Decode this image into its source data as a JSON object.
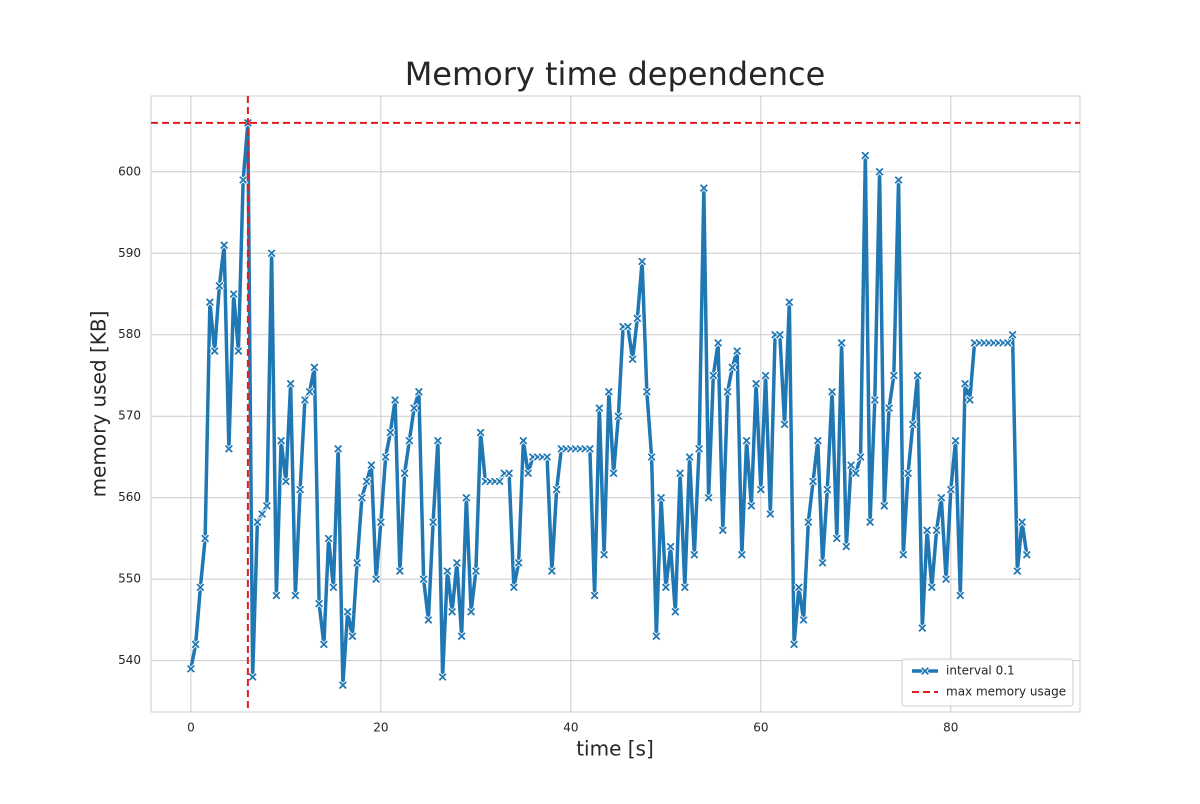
{
  "chart_data": {
    "type": "line",
    "title": "Memory time dependence",
    "x_label": "time [s]",
    "y_label": "memory used [KB]",
    "x": [
      0,
      0.5,
      1,
      1.5,
      2,
      2.5,
      3,
      3.5,
      4,
      4.5,
      5,
      5.5,
      6,
      6.5,
      7,
      7.5,
      8,
      8.5,
      9,
      9.5,
      10,
      10.5,
      11,
      11.5,
      12,
      12.5,
      13,
      13.5,
      14,
      14.5,
      15,
      15.5,
      16,
      16.5,
      17,
      17.5,
      18,
      18.5,
      19,
      19.5,
      20,
      20.5,
      21,
      21.5,
      22,
      22.5,
      23,
      23.5,
      24,
      24.5,
      25,
      25.5,
      26,
      26.5,
      27,
      27.5,
      28,
      28.5,
      29,
      29.5,
      30,
      30.5,
      31,
      31.5,
      32,
      32.5,
      33,
      33.5,
      34,
      34.5,
      35,
      35.5,
      36,
      36.5,
      37,
      37.5,
      38,
      38.5,
      39,
      39.5,
      40,
      40.5,
      41,
      41.5,
      42,
      42.5,
      43,
      43.5,
      44,
      44.5,
      45,
      45.5,
      46,
      46.5,
      47,
      47.5,
      48,
      48.5,
      49,
      49.5,
      50,
      50.5,
      51,
      51.5,
      52,
      52.5,
      53,
      53.5,
      54,
      54.5,
      55,
      55.5,
      56,
      56.5,
      57,
      57.5,
      58,
      58.5,
      59,
      59.5,
      60,
      60.5,
      61,
      61.5,
      62,
      62.5,
      63,
      63.5,
      64,
      64.5,
      65,
      65.5,
      66,
      66.5,
      67,
      67.5,
      68,
      68.5,
      69,
      69.5,
      70,
      70.5,
      71,
      71.5,
      72,
      72.5,
      73,
      73.5,
      74,
      74.5,
      75,
      75.5,
      76,
      76.5,
      77,
      77.5,
      78,
      78.5,
      79,
      79.5,
      80,
      80.5,
      81,
      81.5,
      82,
      82.5,
      83,
      83.5,
      84,
      84.5,
      85,
      85.5,
      86,
      86.5,
      87,
      87.5,
      88
    ],
    "series": [
      {
        "name": "interval 0.1",
        "color": "#1f77b4",
        "values": [
          539,
          542,
          549,
          555,
          584,
          578,
          586,
          591,
          566,
          585,
          578,
          599,
          606,
          538,
          557,
          558,
          559,
          590,
          548,
          567,
          562,
          574,
          548,
          561,
          572,
          573,
          576,
          547,
          542,
          555,
          549,
          566,
          537,
          546,
          543,
          552,
          560,
          562,
          564,
          550,
          557,
          565,
          568,
          572,
          551,
          563,
          567,
          571,
          573,
          550,
          545,
          557,
          567,
          538,
          551,
          546,
          552,
          543,
          560,
          546,
          551,
          568,
          562,
          562,
          562,
          562,
          563,
          563,
          549,
          552,
          567,
          563,
          565,
          565,
          565,
          565,
          551,
          561,
          566,
          566,
          566,
          566,
          566,
          566,
          566,
          548,
          571,
          553,
          573,
          563,
          570,
          581,
          581,
          577,
          582,
          589,
          573,
          565,
          543,
          560,
          549,
          554,
          546,
          563,
          549,
          565,
          553,
          566,
          598,
          560,
          575,
          579,
          556,
          573,
          576,
          578,
          553,
          567,
          559,
          574,
          561,
          575,
          558,
          580,
          580,
          569,
          584,
          542,
          549,
          545,
          557,
          562,
          567,
          552,
          561,
          573,
          555,
          579,
          554,
          564,
          563,
          565,
          602,
          557,
          572,
          600,
          559,
          571,
          575,
          599,
          553,
          563,
          569,
          575,
          544,
          556,
          549,
          556,
          560,
          550,
          561,
          567,
          548,
          574,
          572,
          579,
          579,
          579,
          579,
          579,
          579,
          579,
          579,
          580,
          551,
          557,
          553
        ]
      }
    ],
    "max_line": {
      "name": "max memory usage",
      "color": "#e41a1c",
      "x": 6.0,
      "y": 606
    },
    "xlim": [
      -4.2,
      93.6
    ],
    "ylim": [
      533.7,
      609.3
    ],
    "xticks": [
      0,
      20,
      40,
      60,
      80
    ],
    "yticks": [
      540,
      550,
      560,
      570,
      580,
      590,
      600
    ],
    "grid": true,
    "legend": "lower right"
  }
}
